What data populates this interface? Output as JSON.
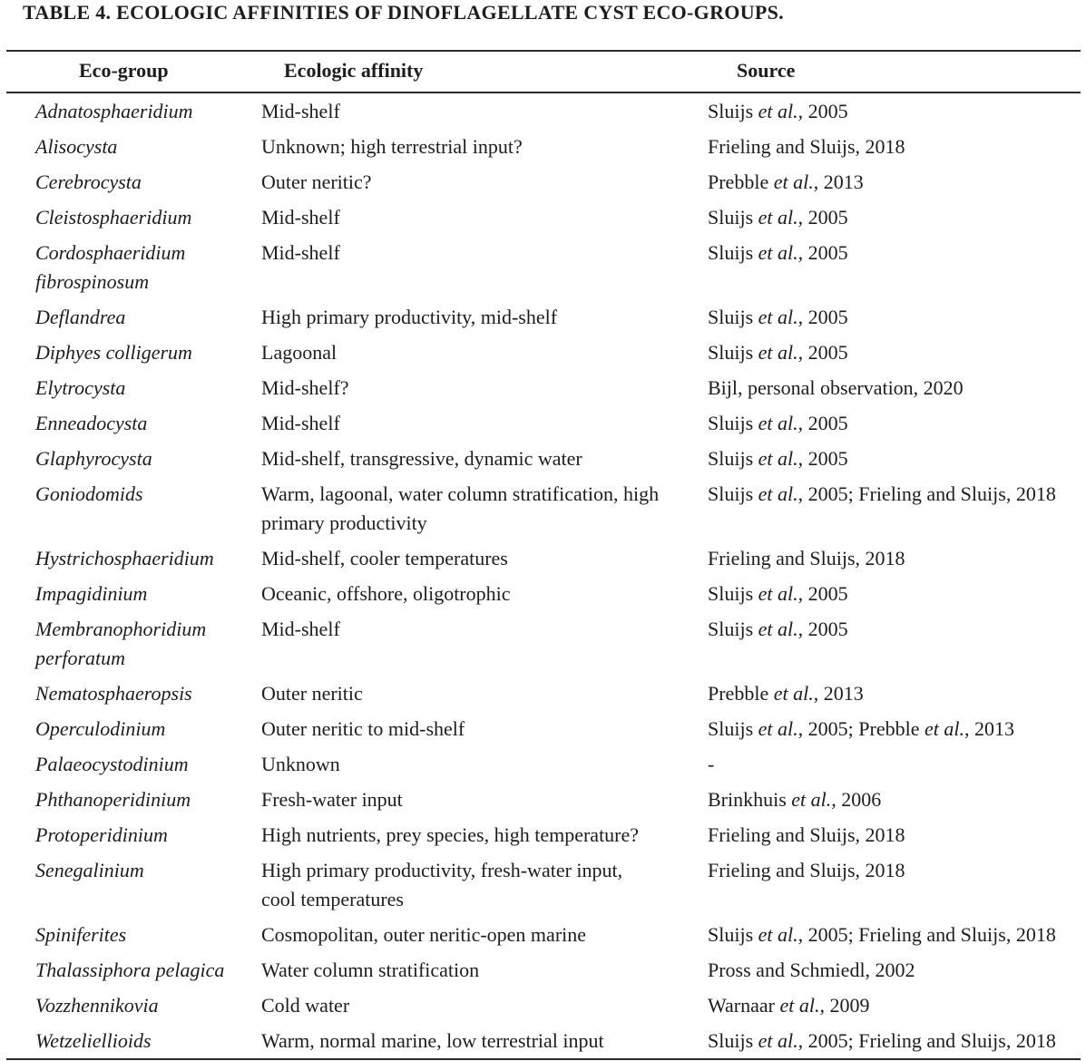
{
  "title": "TABLE 4. ECOLOGIC AFFINITIES OF DINOFLAGELLATE CYST ECO-GROUPS.",
  "colors": {
    "background": "#ffffff",
    "text": "#1d1d1d",
    "rule": "#2b2b2b"
  },
  "table": {
    "headers": [
      "Eco-group",
      "Ecologic affinity",
      "Source"
    ],
    "italic_phrase": "et al.",
    "rows": [
      {
        "eco_group": "Adnatosphaeridium",
        "affinity": "Mid-shelf",
        "source": "Sluijs et al., 2005"
      },
      {
        "eco_group": "Alisocysta",
        "affinity": "Unknown; high terrestrial input?",
        "source": "Frieling and Sluijs, 2018"
      },
      {
        "eco_group": "Cerebrocysta",
        "affinity": "Outer neritic?",
        "source": "Prebble et al., 2013"
      },
      {
        "eco_group": "Cleistosphaeridium",
        "affinity": "Mid-shelf",
        "source": "Sluijs et al., 2005"
      },
      {
        "eco_group": "Cordosphaeridium\nfibrospinosum",
        "affinity": "Mid-shelf",
        "source": "Sluijs et al., 2005"
      },
      {
        "eco_group": "Deflandrea",
        "affinity": "High primary productivity, mid-shelf",
        "source": "Sluijs et al., 2005"
      },
      {
        "eco_group": "Diphyes colligerum",
        "affinity": "Lagoonal",
        "source": "Sluijs et al., 2005"
      },
      {
        "eco_group": "Elytrocysta",
        "affinity": "Mid-shelf?",
        "source": "Bijl, personal observation, 2020"
      },
      {
        "eco_group": "Enneadocysta",
        "affinity": "Mid-shelf",
        "source": "Sluijs et al., 2005"
      },
      {
        "eco_group": "Glaphyrocysta",
        "affinity": "Mid-shelf, transgressive, dynamic water",
        "source": "Sluijs et al., 2005"
      },
      {
        "eco_group": "Goniodomids",
        "affinity": "Warm, lagoonal, water column stratification, high\nprimary productivity",
        "source": "Sluijs et al., 2005; Frieling and Sluijs, 2018"
      },
      {
        "eco_group": "Hystrichosphaeridium",
        "affinity": "Mid-shelf, cooler temperatures",
        "source": "Frieling and Sluijs, 2018"
      },
      {
        "eco_group": "Impagidinium",
        "affinity": "Oceanic, offshore, oligotrophic",
        "source": "Sluijs et al., 2005"
      },
      {
        "eco_group": "Membranophoridium\nperforatum",
        "affinity": "Mid-shelf",
        "source": "Sluijs et al., 2005"
      },
      {
        "eco_group": "Nematosphaeropsis",
        "affinity": "Outer neritic",
        "source": "Prebble et al., 2013"
      },
      {
        "eco_group": "Operculodinium",
        "affinity": "Outer neritic to mid-shelf",
        "source": "Sluijs et al., 2005; Prebble et al., 2013"
      },
      {
        "eco_group": "Palaeocystodinium",
        "affinity": "Unknown",
        "source": "-"
      },
      {
        "eco_group": "Phthanoperidinium",
        "affinity": "Fresh-water input",
        "source": "Brinkhuis et al., 2006"
      },
      {
        "eco_group": "Protoperidinium",
        "affinity": "High nutrients, prey species, high temperature?",
        "source": "Frieling and Sluijs, 2018"
      },
      {
        "eco_group": "Senegalinium",
        "affinity": "High primary productivity, fresh-water input,\ncool temperatures",
        "source": "Frieling and Sluijs, 2018"
      },
      {
        "eco_group": "Spiniferites",
        "affinity": "Cosmopolitan, outer neritic-open marine",
        "source": "Sluijs et al., 2005; Frieling and Sluijs, 2018"
      },
      {
        "eco_group": "Thalassiphora pelagica",
        "affinity": "Water column stratification",
        "source": "Pross and Schmiedl, 2002"
      },
      {
        "eco_group": "Vozzhennikovia",
        "affinity": "Cold water",
        "source": "Warnaar et al., 2009"
      },
      {
        "eco_group": "Wetzeliellioids",
        "affinity": "Warm, normal marine, low terrestrial input",
        "source": "Sluijs et al., 2005; Frieling and Sluijs, 2018"
      }
    ]
  }
}
